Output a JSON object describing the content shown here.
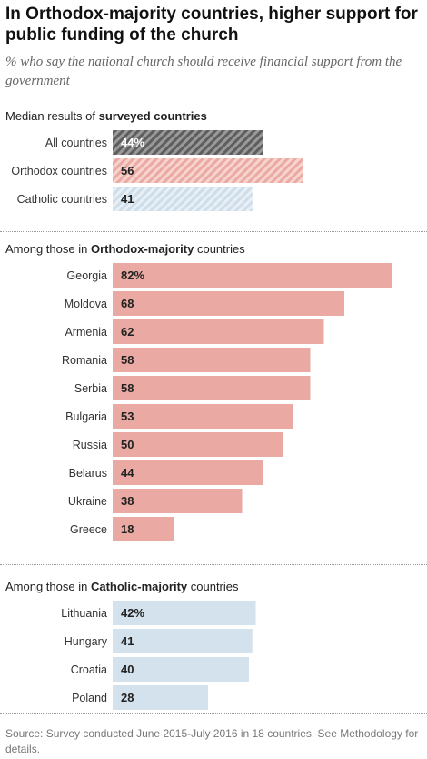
{
  "header": {
    "title": "In Orthodox-majority countries, higher support for public funding of the church",
    "subtitle": "% who say the national church should receive financial support from the government"
  },
  "sections": [
    {
      "head_pre": "Median results of ",
      "head_bold": "surveyed countries",
      "head_post": ""
    },
    {
      "head_pre": "Among those in ",
      "head_bold": "Orthodox-majority",
      "head_post": " countries"
    },
    {
      "head_pre": "Among those in ",
      "head_bold": "Catholic-majority",
      "head_post": " countries"
    }
  ],
  "source": "Source: Survey conducted June 2015-July 2016 in 18 countries. See Methodology for details.",
  "colors": {
    "orthodox": "#eaa9a2",
    "catholic": "#d3e2ec",
    "all_dark": "#5e5e5e",
    "all_light": "#9a9a9a",
    "orthodox_hatch_bg": "#f8d4cf",
    "orthodox_hatch_line": "#eaa9a2",
    "catholic_hatch_bg": "#e8f0f6",
    "catholic_hatch_line": "#cddde9",
    "label_dark": "#222222",
    "label_white": "#ffffff"
  },
  "chart_data": [
    {
      "type": "bar",
      "orientation": "horizontal",
      "categories": [
        "All countries",
        "Orthodox countries",
        "Catholic countries"
      ],
      "values": [
        44,
        56,
        41
      ],
      "labels": [
        "44%",
        "56",
        "41"
      ],
      "styles": [
        "all",
        "orthodox",
        "catholic"
      ],
      "hatched": true,
      "xlim": [
        0,
        100
      ]
    },
    {
      "type": "bar",
      "orientation": "horizontal",
      "categories": [
        "Georgia",
        "Moldova",
        "Armenia",
        "Romania",
        "Serbia",
        "Bulgaria",
        "Russia",
        "Belarus",
        "Ukraine",
        "Greece"
      ],
      "values": [
        82,
        68,
        62,
        58,
        58,
        53,
        50,
        44,
        38,
        18
      ],
      "labels": [
        "82%",
        "68",
        "62",
        "58",
        "58",
        "53",
        "50",
        "44",
        "38",
        "18"
      ],
      "styles": [
        "orthodox",
        "orthodox",
        "orthodox",
        "orthodox",
        "orthodox",
        "orthodox",
        "orthodox",
        "orthodox",
        "orthodox",
        "orthodox"
      ],
      "hatched": false,
      "xlim": [
        0,
        100
      ]
    },
    {
      "type": "bar",
      "orientation": "horizontal",
      "categories": [
        "Lithuania",
        "Hungary",
        "Croatia",
        "Poland"
      ],
      "values": [
        42,
        41,
        40,
        28
      ],
      "labels": [
        "42%",
        "41",
        "40",
        "28"
      ],
      "styles": [
        "catholic",
        "catholic",
        "catholic",
        "catholic"
      ],
      "hatched": false,
      "xlim": [
        0,
        100
      ]
    }
  ]
}
